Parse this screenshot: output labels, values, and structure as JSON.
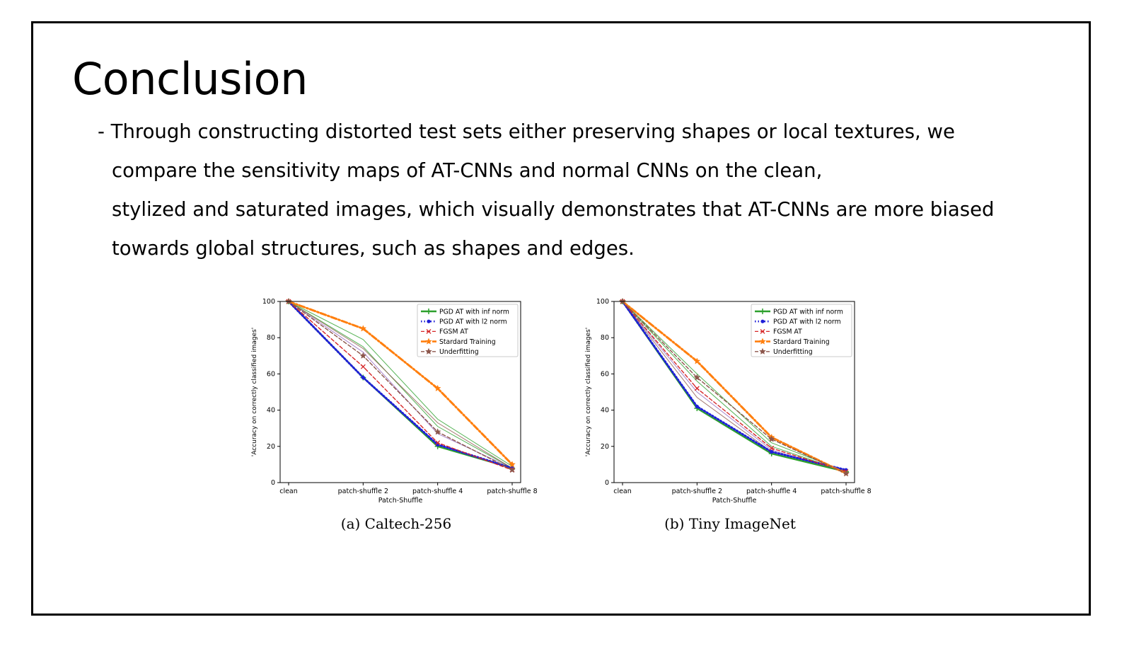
{
  "slide": {
    "title": "Conclusion",
    "bullet_lines": [
      "- Through constructing distorted test sets either preserving shapes or local textures, we",
      "compare the sensitivity maps of AT-CNNs and normal CNNs on the clean,",
      "stylized and saturated images, which visually demonstrates that AT-CNNs are more biased",
      "towards global structures, such as shapes and edges."
    ]
  },
  "chart_data": [
    {
      "type": "line",
      "caption": "(a) Caltech-256",
      "xlabel": "Patch-Shuffle",
      "ylabel": "'Accuracy on correctly classified images'",
      "categories": [
        "clean",
        "patch-shuffle 2",
        "patch-shuffle 4",
        "patch-shuffle 8"
      ],
      "ylim": [
        0,
        100
      ],
      "yticks": [
        0,
        20,
        40,
        60,
        80,
        100
      ],
      "legend_position": "top-right",
      "series": [
        {
          "name": "PGD AT with inf norm",
          "color": "#2ca02c",
          "style": "solid",
          "marker": "plus",
          "values": [
            100,
            58,
            20,
            8
          ]
        },
        {
          "name": "PGD AT with l2 norm",
          "color": "#1f1fd8",
          "style": "dotted",
          "marker": "dot",
          "values": [
            100,
            58,
            21,
            8
          ]
        },
        {
          "name": "FGSM AT",
          "color": "#d62728",
          "style": "dashed",
          "marker": "x",
          "values": [
            100,
            64,
            22,
            7
          ]
        },
        {
          "name": "Stardard Training",
          "color": "#ff7f0e",
          "style": "dashdot",
          "marker": "star",
          "values": [
            100,
            85,
            52,
            10
          ]
        },
        {
          "name": "Underfitting",
          "color": "#8c564b",
          "style": "dashed",
          "marker": "star",
          "values": [
            100,
            70,
            28,
            7
          ]
        }
      ],
      "extra_lines": [
        {
          "color": "#2ca02c",
          "values": [
            100,
            79,
            35,
            9
          ]
        },
        {
          "color": "#2ca02c",
          "values": [
            100,
            75,
            31,
            8
          ]
        },
        {
          "color": "#9467bd",
          "values": [
            100,
            72,
            27,
            8
          ]
        },
        {
          "color": "#8c564b",
          "values": [
            100,
            74,
            33,
            8
          ]
        }
      ]
    },
    {
      "type": "line",
      "caption": "(b) Tiny ImageNet",
      "xlabel": "Patch-Shuffle",
      "ylabel": "'Accuracy on correctly classified images'",
      "categories": [
        "clean",
        "patch-shuffle 2",
        "patch-shuffle 4",
        "patch-shuffle 8"
      ],
      "ylim": [
        0,
        100
      ],
      "yticks": [
        0,
        20,
        40,
        60,
        80,
        100
      ],
      "legend_position": "top-right",
      "series": [
        {
          "name": "PGD AT with inf norm",
          "color": "#2ca02c",
          "style": "solid",
          "marker": "plus",
          "values": [
            100,
            41,
            16,
            6
          ]
        },
        {
          "name": "PGD AT with l2 norm",
          "color": "#1f1fd8",
          "style": "dotted",
          "marker": "dot",
          "values": [
            100,
            42,
            17,
            7
          ]
        },
        {
          "name": "FGSM AT",
          "color": "#d62728",
          "style": "dashed",
          "marker": "x",
          "values": [
            100,
            52,
            19,
            6
          ]
        },
        {
          "name": "Stardard Training",
          "color": "#ff7f0e",
          "style": "dashdot",
          "marker": "star",
          "values": [
            100,
            67,
            25,
            5
          ]
        },
        {
          "name": "Underfitting",
          "color": "#8c564b",
          "style": "dashed",
          "marker": "star",
          "values": [
            100,
            58,
            24,
            5
          ]
        }
      ],
      "extra_lines": [
        {
          "color": "#2ca02c",
          "values": [
            100,
            60,
            22,
            6
          ]
        },
        {
          "color": "#2ca02c",
          "values": [
            100,
            56,
            20,
            6
          ]
        },
        {
          "color": "#9467bd",
          "values": [
            100,
            50,
            18,
            6
          ]
        },
        {
          "color": "#8c564b",
          "values": [
            100,
            47,
            17,
            6
          ]
        }
      ]
    }
  ]
}
